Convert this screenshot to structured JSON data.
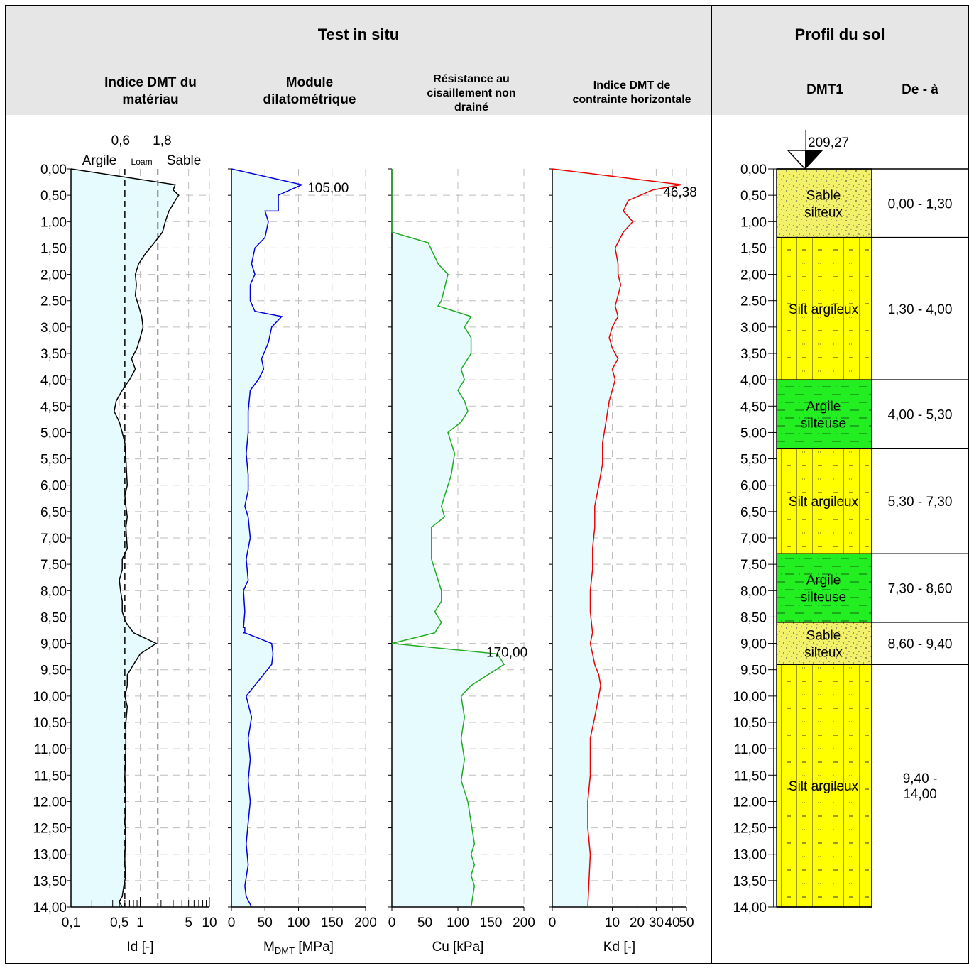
{
  "header": {
    "test_title": "Test in situ",
    "profile_title": "Profil du sol",
    "col_id": "Indice DMT du\nmatériau",
    "col_m": "Module\ndilatométrique",
    "col_cu": "Résistance au\ncisaillement non\ndrainé",
    "col_kd": "Indice DMT de\ncontrainte horizontale",
    "col_dmt": "DMT1",
    "col_range": "De - à"
  },
  "id_zones": {
    "b1_value": "0,6",
    "b2_value": "1,8",
    "argile": "Argile",
    "loam": "Loam",
    "sable": "Sable"
  },
  "elevation": "209,27",
  "depth_ticks": [
    "0,00",
    "0,50",
    "1,00",
    "1,50",
    "2,00",
    "2,50",
    "3,00",
    "3,50",
    "4,00",
    "4,50",
    "5,00",
    "5,50",
    "6,00",
    "6,50",
    "7,00",
    "7,50",
    "8,00",
    "8,50",
    "9,00",
    "9,50",
    "10,00",
    "10,50",
    "11,00",
    "11,50",
    "12,00",
    "12,50",
    "13,00",
    "13,50",
    "14,00"
  ],
  "colors": {
    "fill": "#e6fbfd",
    "id_line": "#000000",
    "m_line": "#0000dd",
    "cu_line": "#22aa22",
    "kd_line": "#ee0000",
    "sand_silt": "#f3f06a",
    "silt_clay": "#ffff00",
    "clay_silt": "#22ee22"
  },
  "chart_data": [
    {
      "type": "line",
      "name": "id",
      "xlabel": "Id [-]",
      "xscale": "log",
      "xlim": [
        0.1,
        10
      ],
      "tick_labels": [
        "0,1",
        "0,5",
        "1",
        "5",
        "10"
      ],
      "tick_values": [
        0.1,
        0.5,
        1,
        5,
        10
      ],
      "ylim": [
        0,
        14
      ],
      "boundaries": [
        0.6,
        1.8
      ],
      "x": [
        0.1,
        3.2,
        3.0,
        3.6,
        3.2,
        2.6,
        2.3,
        2.1,
        1.6,
        1.2,
        0.95,
        0.85,
        0.88,
        0.85,
        0.95,
        1.05,
        1.1,
        1.0,
        0.9,
        0.75,
        0.85,
        0.7,
        0.55,
        0.45,
        0.42,
        0.5,
        0.55,
        0.6,
        0.62,
        0.65,
        0.6,
        0.62,
        0.65,
        0.62,
        0.65,
        0.55,
        0.55,
        0.5,
        0.52,
        0.55,
        0.55,
        0.62,
        0.8,
        1.7,
        1.0,
        0.8,
        0.65,
        0.65,
        0.6,
        0.65,
        0.62,
        0.62,
        0.6,
        0.62,
        0.6,
        0.62,
        0.6,
        0.6,
        0.62,
        0.58,
        0.55,
        0.5,
        0.55
      ],
      "y": [
        0.0,
        0.3,
        0.4,
        0.5,
        0.6,
        0.8,
        1.0,
        1.2,
        1.4,
        1.6,
        1.8,
        2.0,
        2.2,
        2.4,
        2.6,
        2.8,
        3.0,
        3.2,
        3.4,
        3.6,
        3.8,
        4.0,
        4.2,
        4.4,
        4.6,
        4.8,
        5.0,
        5.2,
        5.5,
        6.0,
        6.2,
        6.4,
        6.6,
        6.8,
        7.2,
        7.4,
        7.6,
        7.8,
        8.0,
        8.2,
        8.4,
        8.6,
        8.8,
        9.0,
        9.2,
        9.4,
        9.6,
        9.8,
        10.0,
        10.2,
        10.5,
        11.0,
        11.5,
        12.0,
        12.4,
        12.6,
        13.0,
        13.2,
        13.4,
        13.6,
        13.8,
        13.9,
        14.0
      ]
    },
    {
      "type": "line",
      "name": "m",
      "xlabel_main": "M",
      "xlabel_sub": "DMT",
      "xlabel_unit": " [MPa]",
      "xlim": [
        0,
        200
      ],
      "tick_labels": [
        "0",
        "50",
        "100",
        "150",
        "200"
      ],
      "tick_values": [
        0,
        50,
        100,
        150,
        200
      ],
      "ylim": [
        0,
        14
      ],
      "peak_label": "105,00",
      "peak_label_x": 105,
      "peak_label_y": 0.35,
      "x": [
        0,
        105,
        70,
        70,
        50,
        55,
        50,
        35,
        30,
        35,
        28,
        28,
        35,
        75,
        60,
        55,
        45,
        48,
        40,
        28,
        25,
        25,
        22,
        25,
        25,
        20,
        25,
        28,
        22,
        25,
        18,
        20,
        18,
        20,
        20,
        18,
        20,
        60,
        62,
        60,
        22,
        30,
        25,
        28,
        25,
        28,
        25,
        22,
        25,
        20,
        22,
        30
      ],
      "y": [
        0.0,
        0.3,
        0.5,
        0.8,
        0.8,
        1.0,
        1.3,
        1.5,
        1.8,
        2.0,
        2.2,
        2.5,
        2.7,
        2.8,
        3.0,
        3.3,
        3.6,
        3.8,
        4.0,
        4.2,
        4.6,
        5.0,
        5.4,
        5.8,
        6.1,
        6.4,
        6.6,
        7.0,
        7.4,
        7.8,
        8.0,
        8.4,
        8.7,
        8.7,
        8.8,
        8.8,
        8.8,
        9.0,
        9.2,
        9.4,
        10.0,
        10.4,
        10.8,
        11.2,
        11.6,
        12.0,
        12.4,
        12.8,
        13.2,
        13.6,
        13.8,
        14.0
      ]
    },
    {
      "type": "line",
      "name": "cu",
      "xlabel": "Cu [kPa]",
      "xlim": [
        0,
        200
      ],
      "tick_labels": [
        "0",
        "50",
        "100",
        "150",
        "200"
      ],
      "tick_values": [
        0,
        50,
        100,
        150,
        200
      ],
      "ylim": [
        0,
        14
      ],
      "peak_label": "170,00",
      "peak_label_x": 170,
      "peak_label_y": 9.2,
      "x": [
        0,
        0,
        0,
        55,
        70,
        85,
        75,
        70,
        120,
        110,
        120,
        120,
        105,
        110,
        100,
        110,
        115,
        105,
        85,
        95,
        90,
        80,
        75,
        80,
        60,
        60,
        60,
        60,
        65,
        70,
        75,
        75,
        65,
        75,
        65,
        0,
        160,
        170,
        145,
        120,
        105,
        110,
        105,
        110,
        105,
        115,
        120,
        125,
        120,
        125,
        120,
        125,
        120
      ],
      "y": [
        0.0,
        1.0,
        1.2,
        1.4,
        1.8,
        2.0,
        2.5,
        2.6,
        2.8,
        3.0,
        3.2,
        3.5,
        3.8,
        4.0,
        4.2,
        4.4,
        4.6,
        4.8,
        5.0,
        5.4,
        5.8,
        6.2,
        6.4,
        6.6,
        6.8,
        7.0,
        7.2,
        7.4,
        7.6,
        7.8,
        8.0,
        8.2,
        8.4,
        8.6,
        8.8,
        9.0,
        9.2,
        9.4,
        9.6,
        9.8,
        10.0,
        10.4,
        10.8,
        11.2,
        11.6,
        12.0,
        12.4,
        12.8,
        13.0,
        13.2,
        13.4,
        13.6,
        14.0
      ]
    },
    {
      "type": "line",
      "name": "kd",
      "xlabel": "Kd [-]",
      "xscale": "sqrt",
      "xlim": [
        0,
        50
      ],
      "tick_labels": [
        "0",
        "10",
        "20",
        "30",
        "40",
        "50"
      ],
      "tick_values": [
        0,
        10,
        20,
        30,
        40,
        50
      ],
      "ylim": [
        0,
        14
      ],
      "peak_label": "46,38",
      "peak_label_x": 46.38,
      "peak_label_y": 0.5,
      "x": [
        0,
        46.38,
        28,
        16,
        14,
        16,
        18,
        14,
        11,
        12,
        12,
        13,
        12,
        11,
        12,
        10,
        9,
        10,
        12,
        10,
        11,
        9,
        8,
        7,
        7,
        6,
        5,
        5,
        4.5,
        4.5,
        4,
        4,
        4.5,
        4,
        4.5,
        5,
        6,
        6.5,
        6,
        5,
        4,
        4,
        3.5,
        3.5,
        4,
        3.5
      ],
      "y": [
        0.0,
        0.3,
        0.4,
        0.6,
        0.8,
        0.9,
        1.0,
        1.2,
        1.5,
        1.8,
        2.0,
        2.2,
        2.4,
        2.6,
        2.8,
        3.0,
        3.2,
        3.4,
        3.6,
        3.8,
        4.0,
        4.4,
        4.8,
        5.2,
        5.6,
        6.0,
        6.4,
        6.8,
        7.2,
        7.6,
        8.0,
        8.4,
        8.8,
        9.0,
        9.2,
        9.4,
        9.6,
        9.8,
        10.0,
        10.4,
        10.8,
        11.5,
        12.0,
        12.5,
        13.0,
        14.0
      ]
    },
    {
      "type": "table",
      "name": "soil_profile",
      "layers": [
        {
          "top": 0.0,
          "bottom": 1.3,
          "label": "Sable\nsilteux",
          "range": "0,00 - 1,30",
          "pattern": "sand_silt"
        },
        {
          "top": 1.3,
          "bottom": 4.0,
          "label": "Silt argileux",
          "range": "1,30 - 4,00",
          "pattern": "silt_clay"
        },
        {
          "top": 4.0,
          "bottom": 5.3,
          "label": "Argile\nsilteuse",
          "range": "4,00 - 5,30",
          "pattern": "clay_silt"
        },
        {
          "top": 5.3,
          "bottom": 7.3,
          "label": "Silt argileux",
          "range": "5,30 - 7,30",
          "pattern": "silt_clay"
        },
        {
          "top": 7.3,
          "bottom": 8.6,
          "label": "Argile\nsilteuse",
          "range": "7,30 - 8,60",
          "pattern": "clay_silt"
        },
        {
          "top": 8.6,
          "bottom": 9.4,
          "label": "Sable\nsilteux",
          "range": "8,60 - 9,40",
          "pattern": "sand_silt"
        },
        {
          "top": 9.4,
          "bottom": 14.0,
          "label": "Silt argileux",
          "range": "9,40 -\n14,00",
          "pattern": "silt_clay"
        }
      ]
    }
  ]
}
